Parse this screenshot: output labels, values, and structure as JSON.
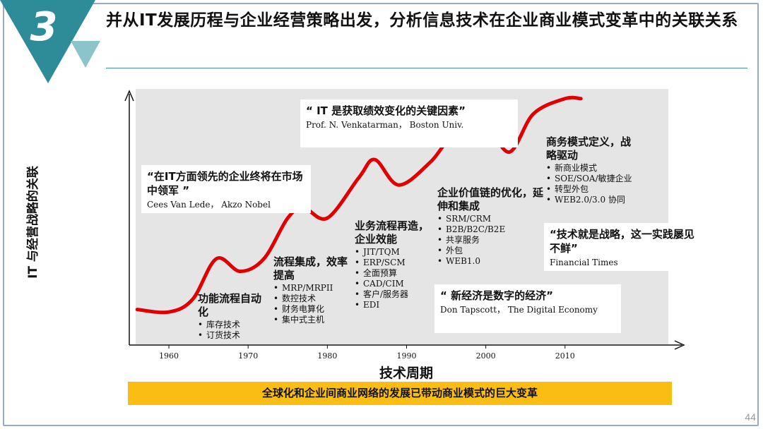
{
  "slide": {
    "number": "3",
    "title": "并从IT发展历程与企业经营策略出发，分析信息技术在企业商业模式变革中的关联关系",
    "page": "44"
  },
  "colors": {
    "teal": "#2e8c98",
    "teal_light": "#8cc4cc",
    "curve": "#e00000",
    "plot_bg": "#e5e5e5",
    "banner": "#f9bd14"
  },
  "chart_data": {
    "type": "line",
    "title": "",
    "xlabel": "技术周期",
    "ylabel": "IT 与经营战略的关联",
    "xlim": [
      1955,
      2025
    ],
    "ylim": [
      0,
      100
    ],
    "x_ticks": [
      "1960",
      "1970",
      "1980",
      "1990",
      "2000",
      "2010"
    ],
    "x_tick_values": [
      1960,
      1970,
      1980,
      1990,
      2000,
      2010
    ],
    "series": [
      {
        "name": "IT 与经营战略的关联",
        "x": [
          1956,
          1960,
          1963,
          1966,
          1969,
          1972,
          1975,
          1977,
          1980,
          1984,
          1986,
          1989,
          1993,
          1996,
          2000,
          2003,
          2006,
          2010,
          2012
        ],
        "y": [
          14,
          13,
          18,
          34,
          29,
          34,
          50,
          54,
          50,
          66,
          73,
          63,
          72,
          83,
          86,
          76,
          91,
          97,
          97
        ]
      }
    ]
  },
  "quotes": [
    {
      "text": "“在IT方面领先的企业终将在市场中领军 ”",
      "source": "Cees Van Lede， Akzo Nobel"
    },
    {
      "text": "“ IT 是获取绩效变化的关键因素”",
      "source": "Prof. N. Venkatarman， Boston Univ."
    },
    {
      "text": "“技术就是战略，这一实践屡见不鲜”",
      "source": "Financial Times"
    },
    {
      "text": "“ 新经济是数字的经济”",
      "source": "Don Tapscott， The Digital Economy"
    }
  ],
  "stages": [
    {
      "title": "功能流程自动化",
      "items": [
        "库存技术",
        "订货技术"
      ]
    },
    {
      "title": "流程集成，效率提高",
      "items": [
        "MRP/MRPII",
        "数控技术",
        "财务电算化",
        "集中式主机"
      ]
    },
    {
      "title": "业务流程再造，企业效能",
      "items": [
        "JIT/TQM",
        "ERP/SCM",
        "全面预算",
        "CAD/CIM",
        "客户/服务器",
        "EDI"
      ]
    },
    {
      "title": "企业价值链的优化，延伸和集成",
      "items": [
        "SRM/CRM",
        "B2B/B2C/B2E",
        "共享服务",
        "外包",
        "WEB1.0"
      ]
    },
    {
      "title": "商务模式定义，战略驱动",
      "items": [
        "新商业模式",
        "SOE/SOA/敏捷企业",
        "转型外包",
        "WEB2.0/3.0 协同"
      ]
    }
  ],
  "banner": "全球化和企业间商业网络的发展已带动商业模式的巨大变革"
}
